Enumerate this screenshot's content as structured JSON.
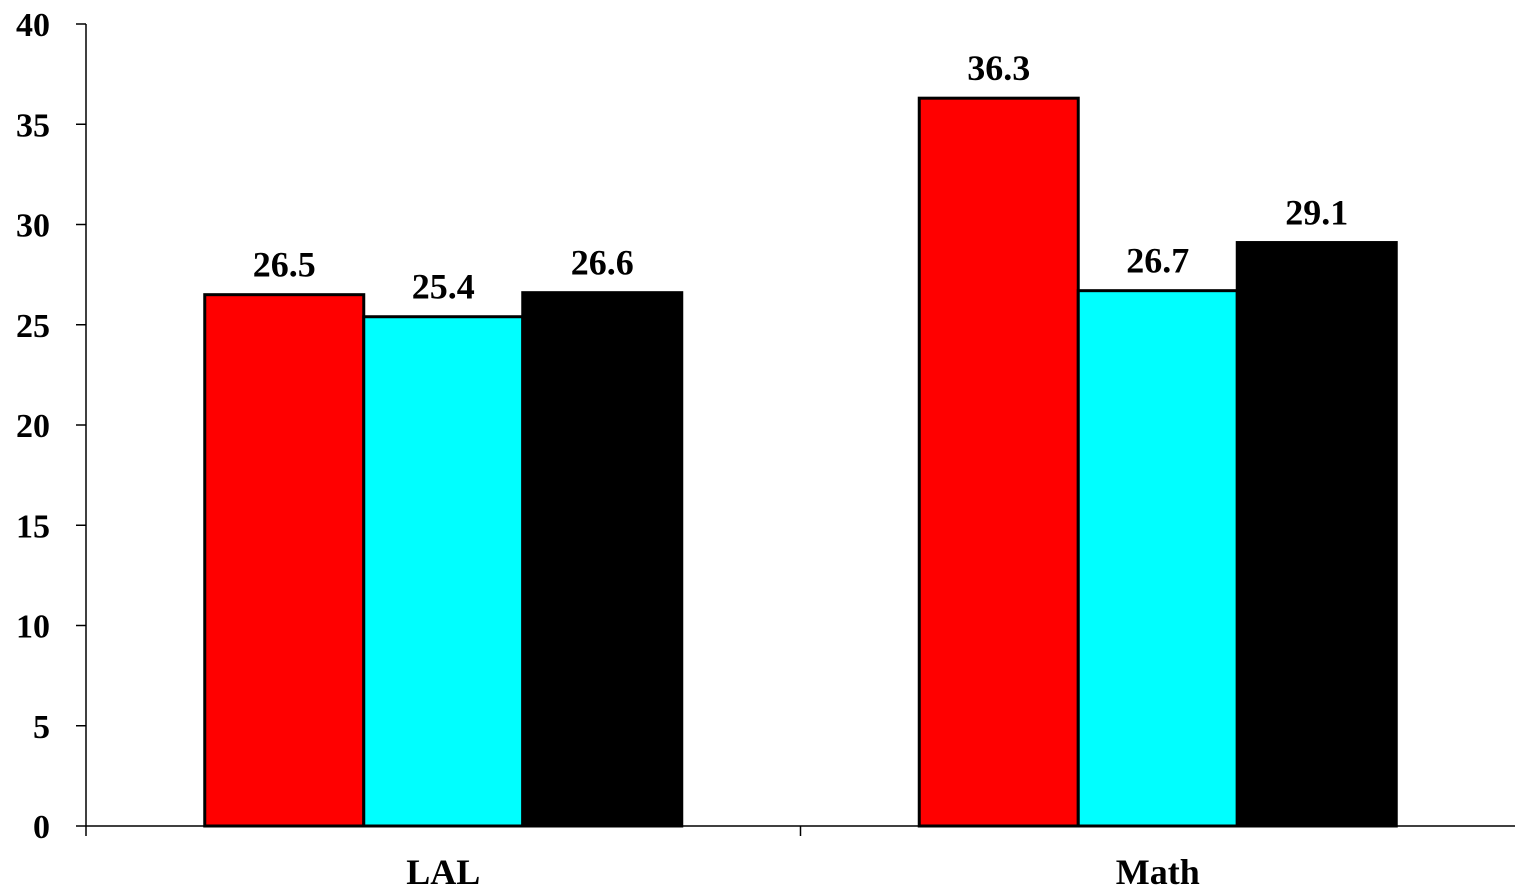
{
  "chart_data": {
    "type": "bar",
    "title": "",
    "xlabel": "",
    "ylabel": "",
    "categories": [
      "LAL",
      "Math"
    ],
    "series": [
      {
        "values": [
          26.5,
          36.3
        ],
        "color": "#ff0000"
      },
      {
        "values": [
          25.4,
          26.7
        ],
        "color": "#00ffff"
      },
      {
        "values": [
          26.6,
          29.1
        ],
        "color": "#000000"
      }
    ],
    "data_labels": [
      [
        "26.5",
        "36.3"
      ],
      [
        "25.4",
        "26.7"
      ],
      [
        "26.6",
        "29.1"
      ]
    ],
    "ylim": [
      0,
      40
    ],
    "yticks": [
      0,
      5,
      10,
      15,
      20,
      25,
      30,
      35,
      40
    ],
    "ytick_labels": [
      "0",
      "5",
      "10",
      "15",
      "20",
      "25",
      "30",
      "35",
      "40"
    ],
    "grid": false,
    "legend": "none",
    "bar_border_color": "#000000",
    "axis_color": "#000000"
  }
}
